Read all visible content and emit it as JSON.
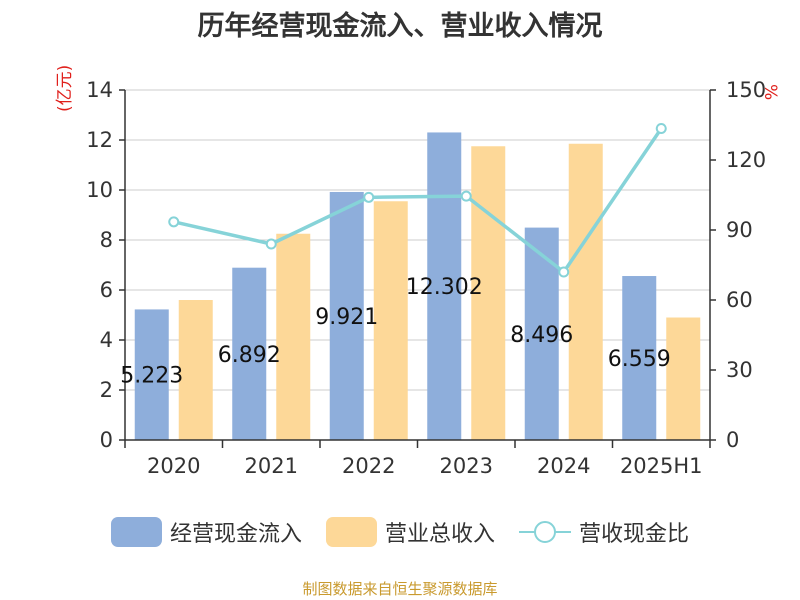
{
  "chart_data": {
    "type": "bar",
    "title": "历年经营现金流入、营业收入情况",
    "categories": [
      "2020",
      "2021",
      "2022",
      "2023",
      "2024",
      "2025H1"
    ],
    "y_left": {
      "label": "(亿元)",
      "ylim": [
        0,
        14
      ],
      "ticks": [
        0,
        2,
        4,
        6,
        8,
        10,
        12,
        14
      ]
    },
    "y_right": {
      "label": "%",
      "ylim": [
        0,
        150
      ],
      "ticks": [
        0,
        30,
        60,
        90,
        120,
        150
      ]
    },
    "series": [
      {
        "name": "经营现金流入",
        "type": "bar",
        "axis": "left",
        "color": "#8eaedb",
        "values": [
          5.223,
          6.892,
          9.921,
          12.302,
          8.496,
          6.559
        ],
        "value_labels": [
          "5.223",
          "6.892",
          "9.921",
          "12.302",
          "8.496",
          "6.559"
        ]
      },
      {
        "name": "营业总收入",
        "type": "bar",
        "axis": "left",
        "color": "#fdd898",
        "values": [
          5.6,
          8.25,
          9.55,
          11.75,
          11.85,
          4.9
        ]
      },
      {
        "name": "营收现金比",
        "type": "line",
        "axis": "right",
        "color": "#86d3d8",
        "values": [
          93.5,
          84,
          104,
          104.5,
          72,
          133.5
        ]
      }
    ],
    "grid": true,
    "legend_position": "bottom"
  },
  "source": "制图数据来自恒生聚源数据库"
}
